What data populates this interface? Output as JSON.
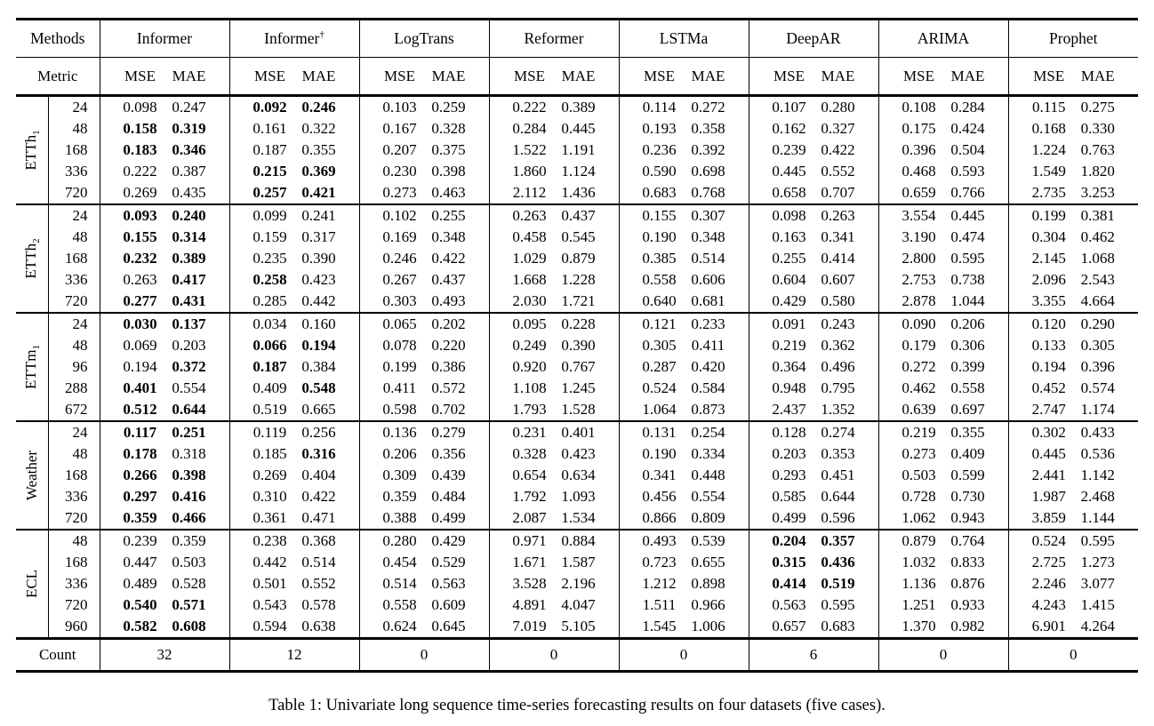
{
  "caption": "Table 1: Univariate long sequence time-series forecasting results on four datasets (five cases).",
  "table": {
    "corner_top_label": "Methods",
    "corner_metric_label": "Metric",
    "count_label": "Count",
    "metrics": [
      "MSE",
      "MAE"
    ],
    "methods": [
      {
        "label": "Informer",
        "sup": ""
      },
      {
        "label": "Informer",
        "sup": "†"
      },
      {
        "label": "LogTrans",
        "sup": ""
      },
      {
        "label": "Reformer",
        "sup": ""
      },
      {
        "label": "LSTMa",
        "sup": ""
      },
      {
        "label": "DeepAR",
        "sup": ""
      },
      {
        "label": "ARIMA",
        "sup": ""
      },
      {
        "label": "Prophet",
        "sup": ""
      }
    ],
    "counts": [
      "32",
      "12",
      "0",
      "0",
      "0",
      "6",
      "0",
      "0"
    ],
    "groups": [
      {
        "dataset_base": "ETTh",
        "dataset_sub": "1",
        "rows": [
          {
            "horizon": "24",
            "values": [
              "0.098",
              "0.247",
              "0.092",
              "0.246",
              "0.103",
              "0.259",
              "0.222",
              "0.389",
              "0.114",
              "0.272",
              "0.107",
              "0.280",
              "0.108",
              "0.284",
              "0.115",
              "0.275"
            ],
            "bold": [
              2,
              3
            ]
          },
          {
            "horizon": "48",
            "values": [
              "0.158",
              "0.319",
              "0.161",
              "0.322",
              "0.167",
              "0.328",
              "0.284",
              "0.445",
              "0.193",
              "0.358",
              "0.162",
              "0.327",
              "0.175",
              "0.424",
              "0.168",
              "0.330"
            ],
            "bold": [
              0,
              1
            ]
          },
          {
            "horizon": "168",
            "values": [
              "0.183",
              "0.346",
              "0.187",
              "0.355",
              "0.207",
              "0.375",
              "1.522",
              "1.191",
              "0.236",
              "0.392",
              "0.239",
              "0.422",
              "0.396",
              "0.504",
              "1.224",
              "0.763"
            ],
            "bold": [
              0,
              1
            ]
          },
          {
            "horizon": "336",
            "values": [
              "0.222",
              "0.387",
              "0.215",
              "0.369",
              "0.230",
              "0.398",
              "1.860",
              "1.124",
              "0.590",
              "0.698",
              "0.445",
              "0.552",
              "0.468",
              "0.593",
              "1.549",
              "1.820"
            ],
            "bold": [
              2,
              3
            ]
          },
          {
            "horizon": "720",
            "values": [
              "0.269",
              "0.435",
              "0.257",
              "0.421",
              "0.273",
              "0.463",
              "2.112",
              "1.436",
              "0.683",
              "0.768",
              "0.658",
              "0.707",
              "0.659",
              "0.766",
              "2.735",
              "3.253"
            ],
            "bold": [
              2,
              3
            ]
          }
        ]
      },
      {
        "dataset_base": "ETTh",
        "dataset_sub": "2",
        "rows": [
          {
            "horizon": "24",
            "values": [
              "0.093",
              "0.240",
              "0.099",
              "0.241",
              "0.102",
              "0.255",
              "0.263",
              "0.437",
              "0.155",
              "0.307",
              "0.098",
              "0.263",
              "3.554",
              "0.445",
              "0.199",
              "0.381"
            ],
            "bold": [
              0,
              1
            ]
          },
          {
            "horizon": "48",
            "values": [
              "0.155",
              "0.314",
              "0.159",
              "0.317",
              "0.169",
              "0.348",
              "0.458",
              "0.545",
              "0.190",
              "0.348",
              "0.163",
              "0.341",
              "3.190",
              "0.474",
              "0.304",
              "0.462"
            ],
            "bold": [
              0,
              1
            ]
          },
          {
            "horizon": "168",
            "values": [
              "0.232",
              "0.389",
              "0.235",
              "0.390",
              "0.246",
              "0.422",
              "1.029",
              "0.879",
              "0.385",
              "0.514",
              "0.255",
              "0.414",
              "2.800",
              "0.595",
              "2.145",
              "1.068"
            ],
            "bold": [
              0,
              1
            ]
          },
          {
            "horizon": "336",
            "values": [
              "0.263",
              "0.417",
              "0.258",
              "0.423",
              "0.267",
              "0.437",
              "1.668",
              "1.228",
              "0.558",
              "0.606",
              "0.604",
              "0.607",
              "2.753",
              "0.738",
              "2.096",
              "2.543"
            ],
            "bold": [
              1,
              2
            ]
          },
          {
            "horizon": "720",
            "values": [
              "0.277",
              "0.431",
              "0.285",
              "0.442",
              "0.303",
              "0.493",
              "2.030",
              "1.721",
              "0.640",
              "0.681",
              "0.429",
              "0.580",
              "2.878",
              "1.044",
              "3.355",
              "4.664"
            ],
            "bold": [
              0,
              1
            ]
          }
        ]
      },
      {
        "dataset_base": "ETTm",
        "dataset_sub": "1",
        "rows": [
          {
            "horizon": "24",
            "values": [
              "0.030",
              "0.137",
              "0.034",
              "0.160",
              "0.065",
              "0.202",
              "0.095",
              "0.228",
              "0.121",
              "0.233",
              "0.091",
              "0.243",
              "0.090",
              "0.206",
              "0.120",
              "0.290"
            ],
            "bold": [
              0,
              1
            ]
          },
          {
            "horizon": "48",
            "values": [
              "0.069",
              "0.203",
              "0.066",
              "0.194",
              "0.078",
              "0.220",
              "0.249",
              "0.390",
              "0.305",
              "0.411",
              "0.219",
              "0.362",
              "0.179",
              "0.306",
              "0.133",
              "0.305"
            ],
            "bold": [
              2,
              3
            ]
          },
          {
            "horizon": "96",
            "values": [
              "0.194",
              "0.372",
              "0.187",
              "0.384",
              "0.199",
              "0.386",
              "0.920",
              "0.767",
              "0.287",
              "0.420",
              "0.364",
              "0.496",
              "0.272",
              "0.399",
              "0.194",
              "0.396"
            ],
            "bold": [
              1,
              2
            ]
          },
          {
            "horizon": "288",
            "values": [
              "0.401",
              "0.554",
              "0.409",
              "0.548",
              "0.411",
              "0.572",
              "1.108",
              "1.245",
              "0.524",
              "0.584",
              "0.948",
              "0.795",
              "0.462",
              "0.558",
              "0.452",
              "0.574"
            ],
            "bold": [
              0,
              3
            ]
          },
          {
            "horizon": "672",
            "values": [
              "0.512",
              "0.644",
              "0.519",
              "0.665",
              "0.598",
              "0.702",
              "1.793",
              "1.528",
              "1.064",
              "0.873",
              "2.437",
              "1.352",
              "0.639",
              "0.697",
              "2.747",
              "1.174"
            ],
            "bold": [
              0,
              1
            ]
          }
        ]
      },
      {
        "dataset_base": "Weather",
        "dataset_sub": "",
        "rows": [
          {
            "horizon": "24",
            "values": [
              "0.117",
              "0.251",
              "0.119",
              "0.256",
              "0.136",
              "0.279",
              "0.231",
              "0.401",
              "0.131",
              "0.254",
              "0.128",
              "0.274",
              "0.219",
              "0.355",
              "0.302",
              "0.433"
            ],
            "bold": [
              0,
              1
            ]
          },
          {
            "horizon": "48",
            "values": [
              "0.178",
              "0.318",
              "0.185",
              "0.316",
              "0.206",
              "0.356",
              "0.328",
              "0.423",
              "0.190",
              "0.334",
              "0.203",
              "0.353",
              "0.273",
              "0.409",
              "0.445",
              "0.536"
            ],
            "bold": [
              0,
              3
            ]
          },
          {
            "horizon": "168",
            "values": [
              "0.266",
              "0.398",
              "0.269",
              "0.404",
              "0.309",
              "0.439",
              "0.654",
              "0.634",
              "0.341",
              "0.448",
              "0.293",
              "0.451",
              "0.503",
              "0.599",
              "2.441",
              "1.142"
            ],
            "bold": [
              0,
              1
            ]
          },
          {
            "horizon": "336",
            "values": [
              "0.297",
              "0.416",
              "0.310",
              "0.422",
              "0.359",
              "0.484",
              "1.792",
              "1.093",
              "0.456",
              "0.554",
              "0.585",
              "0.644",
              "0.728",
              "0.730",
              "1.987",
              "2.468"
            ],
            "bold": [
              0,
              1
            ]
          },
          {
            "horizon": "720",
            "values": [
              "0.359",
              "0.466",
              "0.361",
              "0.471",
              "0.388",
              "0.499",
              "2.087",
              "1.534",
              "0.866",
              "0.809",
              "0.499",
              "0.596",
              "1.062",
              "0.943",
              "3.859",
              "1.144"
            ],
            "bold": [
              0,
              1
            ]
          }
        ]
      },
      {
        "dataset_base": "ECL",
        "dataset_sub": "",
        "rows": [
          {
            "horizon": "48",
            "values": [
              "0.239",
              "0.359",
              "0.238",
              "0.368",
              "0.280",
              "0.429",
              "0.971",
              "0.884",
              "0.493",
              "0.539",
              "0.204",
              "0.357",
              "0.879",
              "0.764",
              "0.524",
              "0.595"
            ],
            "bold": [
              10,
              11
            ]
          },
          {
            "horizon": "168",
            "values": [
              "0.447",
              "0.503",
              "0.442",
              "0.514",
              "0.454",
              "0.529",
              "1.671",
              "1.587",
              "0.723",
              "0.655",
              "0.315",
              "0.436",
              "1.032",
              "0.833",
              "2.725",
              "1.273"
            ],
            "bold": [
              10,
              11
            ]
          },
          {
            "horizon": "336",
            "values": [
              "0.489",
              "0.528",
              "0.501",
              "0.552",
              "0.514",
              "0.563",
              "3.528",
              "2.196",
              "1.212",
              "0.898",
              "0.414",
              "0.519",
              "1.136",
              "0.876",
              "2.246",
              "3.077"
            ],
            "bold": [
              10,
              11
            ]
          },
          {
            "horizon": "720",
            "values": [
              "0.540",
              "0.571",
              "0.543",
              "0.578",
              "0.558",
              "0.609",
              "4.891",
              "4.047",
              "1.511",
              "0.966",
              "0.563",
              "0.595",
              "1.251",
              "0.933",
              "4.243",
              "1.415"
            ],
            "bold": [
              0,
              1
            ]
          },
          {
            "horizon": "960",
            "values": [
              "0.582",
              "0.608",
              "0.594",
              "0.638",
              "0.624",
              "0.645",
              "7.019",
              "5.105",
              "1.545",
              "1.006",
              "0.657",
              "0.683",
              "1.370",
              "0.982",
              "6.901",
              "4.264"
            ],
            "bold": [
              0,
              1
            ]
          }
        ]
      }
    ]
  }
}
